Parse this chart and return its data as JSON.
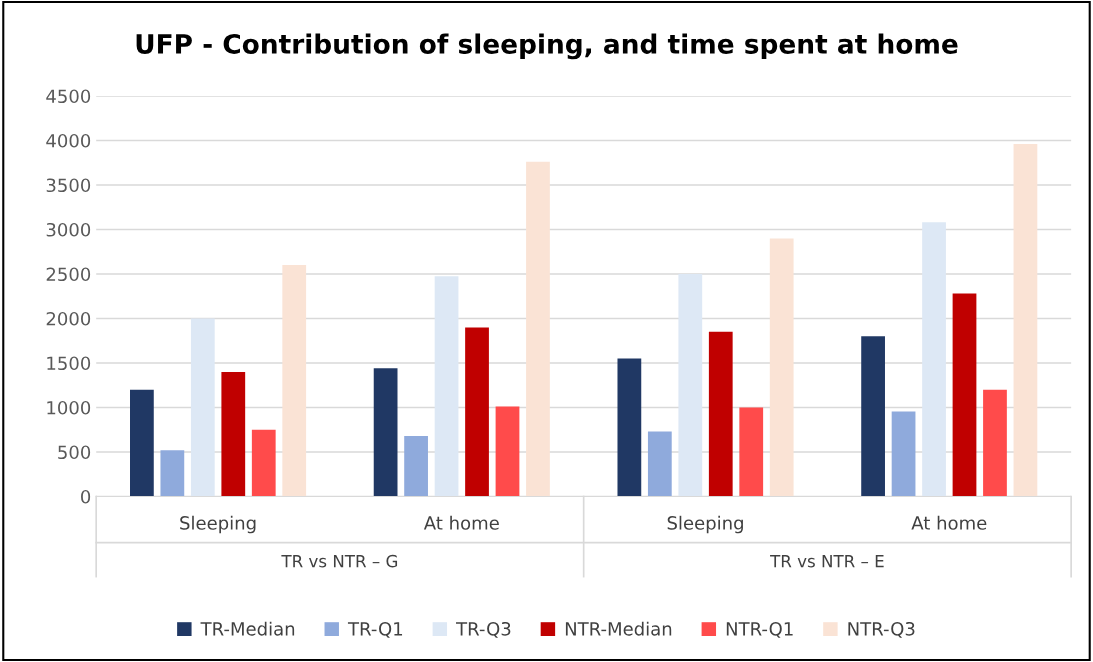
{
  "chart_data": {
    "type": "bar",
    "title": "UFP - Contribution of sleeping, and time spent at home",
    "categories": [
      "Sleeping",
      "At home",
      "Sleeping",
      "At home"
    ],
    "series": [
      {
        "name": "TR-Median",
        "color": "#203864",
        "values": [
          1200,
          1440,
          1550,
          1800
        ]
      },
      {
        "name": "TR-Q1",
        "color": "#8faadc",
        "values": [
          520,
          680,
          730,
          955
        ]
      },
      {
        "name": "TR-Q3",
        "color": "#dde8f5",
        "values": [
          2000,
          2475,
          2500,
          3080
        ]
      },
      {
        "name": "NTR-Median",
        "color": "#c00000",
        "values": [
          1400,
          1900,
          1850,
          2280
        ]
      },
      {
        "name": "NTR-Q1",
        "color": "#ff4b4b",
        "values": [
          750,
          1010,
          1000,
          1200
        ]
      },
      {
        "name": "NTR-Q3",
        "color": "#fae3d5",
        "values": [
          2600,
          3760,
          2900,
          3960
        ]
      }
    ],
    "annotations": [
      "TR vs NTR – G",
      "TR vs NTR – E"
    ],
    "ylim": [
      0,
      4500
    ],
    "yticks": [
      0,
      500,
      1000,
      1500,
      2000,
      2500,
      3000,
      3500,
      4000,
      4500
    ],
    "grid": "y",
    "legend": "bottom"
  }
}
